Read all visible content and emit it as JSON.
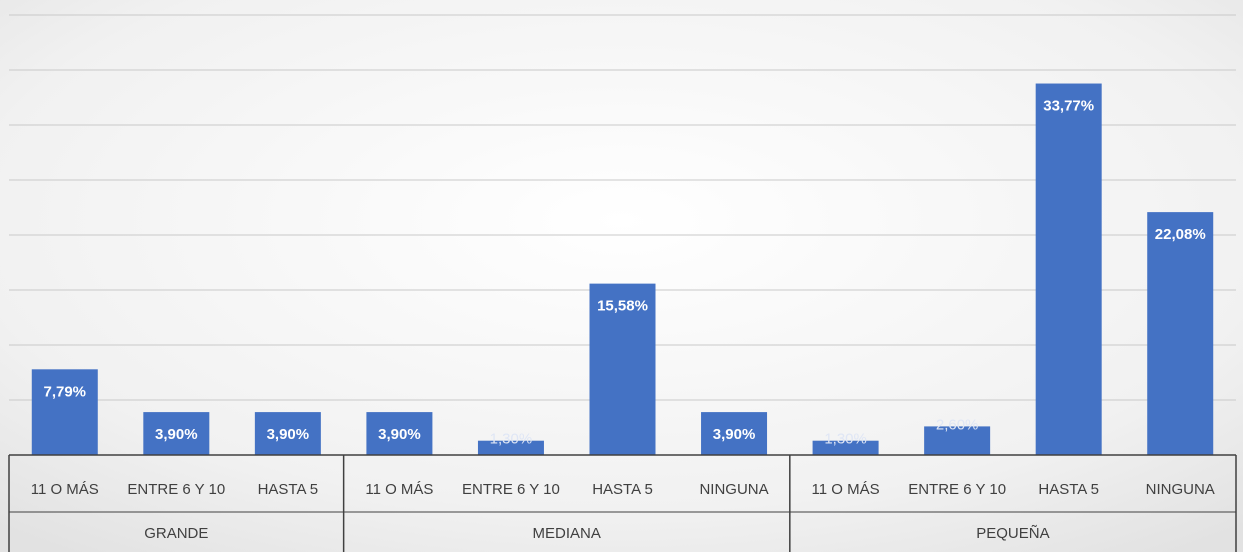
{
  "chart_data": {
    "type": "bar",
    "title": "",
    "xlabel": "",
    "ylabel": "",
    "ylim": [
      0,
      40
    ],
    "grid": true,
    "legend": "none",
    "colors": {
      "bar": "#4472C4",
      "grid": "#c9c9c9",
      "axis": "#404040"
    },
    "groups": [
      {
        "label": "GRANDE",
        "categories": [
          "11 O MÁS",
          "ENTRE 6 Y 10",
          "HASTA 5"
        ]
      },
      {
        "label": "MEDIANA",
        "categories": [
          "11 O MÁS",
          "ENTRE 6 Y 10",
          "HASTA 5",
          "NINGUNA"
        ]
      },
      {
        "label": "PEQUEÑA",
        "categories": [
          "11 O MÁS",
          "ENTRE 6 Y 10",
          "HASTA 5",
          "NINGUNA"
        ]
      }
    ],
    "values": [
      7.79,
      3.9,
      3.9,
      3.9,
      1.3,
      15.58,
      3.9,
      1.3,
      2.6,
      33.77,
      22.08
    ],
    "data_labels": [
      "7,79%",
      "3,90%",
      "3,90%",
      "3,90%",
      "1,30%",
      "15,58%",
      "3,90%",
      "1,30%",
      "2,60%",
      "33,77%",
      "22,08%"
    ]
  }
}
